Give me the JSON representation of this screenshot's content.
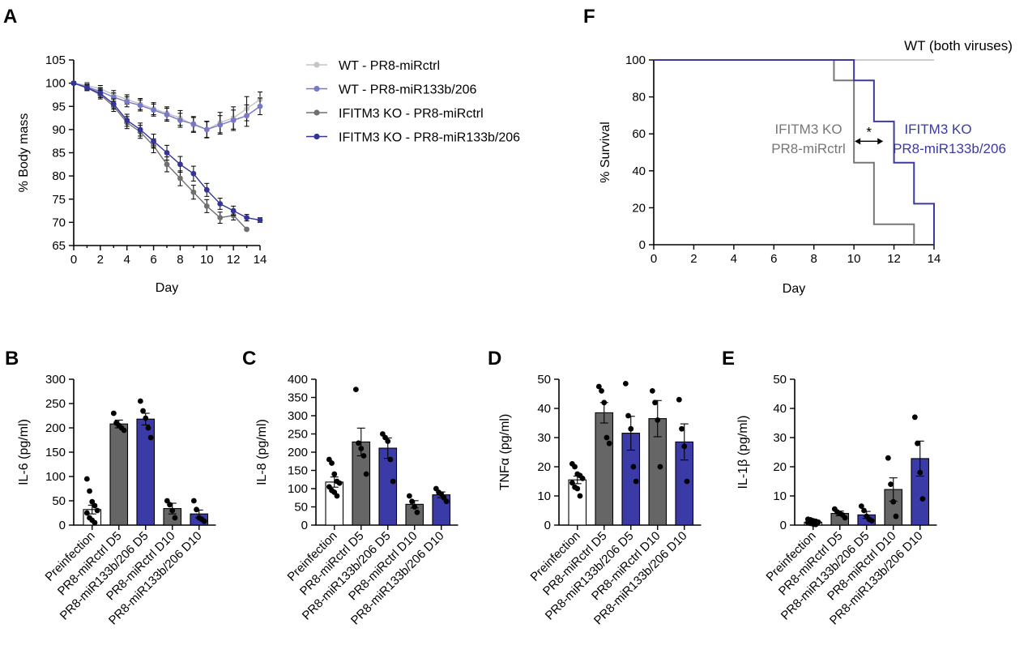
{
  "colors": {
    "wt_ctrl": "#c4c4c4",
    "wt_mir": "#7878c8",
    "ko_ctrl": "#707070",
    "ko_mir": "#33339a",
    "bar_ko_ctrl": "#666666",
    "bar_ko_mir": "#3b3ba8",
    "survival_wt": "#bdbdbd",
    "survival_ko_ctrl": "#777777",
    "survival_ko_mir": "#3a3aa0"
  },
  "chart_data": [
    {
      "id": "A",
      "panel_label": "A",
      "type": "line",
      "xlabel": "Day",
      "ylabel": "% Body mass",
      "xlim": [
        0,
        14
      ],
      "ylim": [
        65,
        105
      ],
      "xticks": [
        "0",
        "2",
        "4",
        "6",
        "8",
        "10",
        "12",
        "14"
      ],
      "yticks": [
        "65",
        "70",
        "75",
        "80",
        "85",
        "90",
        "95",
        "100",
        "105"
      ],
      "legend_position": "right",
      "series": [
        {
          "name": "WT - PR8-miRctrl",
          "color_key": "wt_ctrl",
          "x": [
            0,
            1,
            2,
            3,
            4,
            5,
            6,
            7,
            8,
            9,
            10,
            11,
            12,
            13,
            14
          ],
          "y": [
            100,
            99.5,
            98.8,
            97.5,
            96.5,
            95.5,
            94.5,
            93.5,
            92.5,
            91,
            90,
            91.5,
            92.5,
            94.5,
            96.5
          ],
          "err": [
            0.3,
            0.6,
            0.7,
            0.9,
            1.0,
            1.2,
            1.3,
            1.4,
            1.6,
            1.6,
            1.8,
            2.2,
            2.4,
            2.6,
            1.6
          ]
        },
        {
          "name": "WT - PR8-miR133b/206",
          "color_key": "wt_mir",
          "x": [
            0,
            1,
            2,
            3,
            4,
            5,
            6,
            7,
            8,
            9,
            10,
            11,
            12,
            13,
            14
          ],
          "y": [
            100,
            99.2,
            98.2,
            97,
            96,
            95.2,
            94.2,
            93.2,
            92,
            91.2,
            90,
            91,
            92,
            93,
            95
          ],
          "err": [
            0.3,
            0.6,
            0.8,
            0.9,
            1.1,
            1.2,
            1.3,
            1.4,
            1.5,
            1.6,
            1.7,
            2.0,
            2.2,
            2.3,
            1.8
          ]
        },
        {
          "name": "IFITM3 KO - PR8-miRctrl",
          "color_key": "ko_ctrl",
          "x": [
            0,
            1,
            2,
            3,
            4,
            5,
            6,
            7,
            8,
            9,
            10,
            11,
            12,
            13
          ],
          "y": [
            100,
            99,
            97.5,
            95,
            91.5,
            89.5,
            86.5,
            82.5,
            79.5,
            76.5,
            73.5,
            71,
            71.5,
            68.5
          ],
          "err": [
            0.3,
            0.6,
            0.9,
            1.1,
            1.3,
            1.4,
            1.5,
            1.6,
            1.6,
            1.5,
            1.4,
            1.2,
            1.0,
            0
          ]
        },
        {
          "name": "IFITM3 KO - PR8-miR133b/206",
          "color_key": "ko_mir",
          "x": [
            0,
            1,
            2,
            3,
            4,
            5,
            6,
            7,
            8,
            9,
            10,
            11,
            12,
            13,
            14
          ],
          "y": [
            100,
            99,
            97.8,
            95.5,
            92,
            90,
            87.5,
            85,
            82.5,
            80.5,
            77,
            74,
            72.5,
            71,
            70.5
          ],
          "err": [
            0.3,
            0.6,
            0.9,
            1.1,
            1.3,
            1.4,
            1.5,
            1.6,
            1.7,
            1.6,
            1.4,
            1.2,
            1.0,
            0.7,
            0.5
          ]
        }
      ]
    },
    {
      "id": "F",
      "panel_label": "F",
      "type": "line",
      "subtype": "step",
      "xlabel": "Day",
      "ylabel": "% Survival",
      "xlim": [
        0,
        14
      ],
      "ylim": [
        0,
        100
      ],
      "xticks": [
        "0",
        "2",
        "4",
        "6",
        "8",
        "10",
        "12",
        "14"
      ],
      "yticks": [
        "0",
        "20",
        "40",
        "60",
        "80",
        "100"
      ],
      "series": [
        {
          "name": "WT (both viruses)",
          "color_key": "survival_wt",
          "steps": [
            [
              0,
              100
            ],
            [
              14,
              100
            ]
          ]
        },
        {
          "name": "IFITM3 KO PR8-miRctrl",
          "color_key": "survival_ko_ctrl",
          "steps": [
            [
              0,
              100
            ],
            [
              9,
              88.9
            ],
            [
              10,
              44.4
            ],
            [
              11,
              11.1
            ],
            [
              13,
              0
            ]
          ]
        },
        {
          "name": "IFITM3 KO PR8-miR133b/206",
          "color_key": "survival_ko_mir",
          "steps": [
            [
              0,
              100
            ],
            [
              10,
              88.9
            ],
            [
              11,
              66.7
            ],
            [
              12,
              44.4
            ],
            [
              13,
              22.2
            ],
            [
              14,
              0
            ]
          ]
        }
      ],
      "annotations": {
        "wt": "WT (both viruses)",
        "ko_ctrl_line1": "IFITM3 KO",
        "ko_ctrl_line2": "PR8-miRctrl",
        "ko_mir_line1": "IFITM3 KO",
        "ko_mir_line2": "PR8-miR133b/206",
        "significance": "*"
      }
    },
    {
      "id": "B",
      "panel_label": "B",
      "type": "bar",
      "ylabel": "IL-6 (pg/ml)",
      "ylim": [
        0,
        300
      ],
      "yticks": [
        "0",
        "50",
        "100",
        "150",
        "200",
        "250",
        "300"
      ],
      "categories": [
        "Preinfection",
        "PR8-miRctrl D5",
        "PR8-miR133b/206 D5",
        "PR8-miRctrl D10",
        "PR8-miR133b/206 D10"
      ],
      "bar_colors": [
        "#ffffff",
        "bar_ko_ctrl",
        "bar_ko_mir",
        "bar_ko_ctrl",
        "bar_ko_mir"
      ],
      "values": [
        32,
        208,
        218,
        34,
        23
      ],
      "sem": [
        9,
        8,
        12,
        11,
        8
      ],
      "points": [
        [
          95,
          70,
          48,
          40,
          30,
          25,
          15,
          10,
          5
        ],
        [
          230,
          210,
          205,
          200,
          195
        ],
        [
          255,
          235,
          220,
          200,
          180
        ],
        [
          50,
          42,
          30,
          15
        ],
        [
          50,
          32,
          15,
          12,
          8
        ]
      ]
    },
    {
      "id": "C",
      "panel_label": "C",
      "type": "bar",
      "ylabel": "IL-8 (pg/ml)",
      "ylim": [
        0,
        400
      ],
      "yticks": [
        "0",
        "50",
        "100",
        "150",
        "200",
        "250",
        "300",
        "350",
        "400"
      ],
      "categories": [
        "Preinfection",
        "PR8-miRctrl D5",
        "PR8-miR133b/206 D5",
        "PR8-miRctrl D10",
        "PR8-miR133b/206 D10"
      ],
      "bar_colors": [
        "#ffffff",
        "bar_ko_ctrl",
        "bar_ko_mir",
        "bar_ko_ctrl",
        "bar_ko_mir"
      ],
      "values": [
        118,
        228,
        211,
        57,
        83
      ],
      "sem": [
        14,
        38,
        28,
        10,
        8
      ],
      "points": [
        [
          180,
          170,
          140,
          120,
          115,
          105,
          95,
          90,
          80
        ],
        [
          372,
          225,
          210,
          190,
          140
        ],
        [
          250,
          240,
          230,
          180,
          120
        ],
        [
          80,
          65,
          50,
          35
        ],
        [
          100,
          90,
          85,
          75,
          65
        ]
      ]
    },
    {
      "id": "D",
      "panel_label": "D",
      "type": "bar",
      "ylabel": "TNFα (pg/ml)",
      "ylim": [
        0,
        50
      ],
      "yticks": [
        "0",
        "10",
        "20",
        "30",
        "40",
        "50"
      ],
      "categories": [
        "Preinfection",
        "PR8-miRctrl D5",
        "PR8-miR133b/206 D5",
        "PR8-miRctrl D10",
        "PR8-miR133b/206 D10"
      ],
      "bar_colors": [
        "#ffffff",
        "bar_ko_ctrl",
        "bar_ko_mir",
        "bar_ko_ctrl",
        "bar_ko_mir"
      ],
      "values": [
        15.5,
        38.5,
        31.5,
        36.5,
        28.5
      ],
      "sem": [
        1.3,
        3.5,
        5.8,
        6.2,
        6.2
      ],
      "points": [
        [
          21,
          20,
          17.5,
          17,
          16,
          14.5,
          13,
          12.5,
          10
        ],
        [
          47.5,
          46,
          42,
          30,
          28
        ],
        [
          48.5,
          37.5,
          33,
          20,
          15
        ],
        [
          46,
          42,
          36,
          20
        ],
        [
          43,
          33,
          27,
          15
        ]
      ]
    },
    {
      "id": "E",
      "panel_label": "E",
      "type": "bar",
      "ylabel": "IL-1β (pg/ml)",
      "ylim": [
        0,
        50
      ],
      "yticks": [
        "0",
        "10",
        "20",
        "30",
        "40",
        "50"
      ],
      "categories": [
        "Preinfection",
        "PR8-miRctrl D5",
        "PR8-miR133b/206 D5",
        "PR8-miRctrl D10",
        "PR8-miR133b/206 D10"
      ],
      "bar_colors": [
        "#ffffff",
        "bar_ko_ctrl",
        "bar_ko_mir",
        "bar_ko_ctrl",
        "bar_ko_mir"
      ],
      "values": [
        1,
        4,
        3.5,
        12.2,
        22.8
      ],
      "sem": [
        0.3,
        0.8,
        1.2,
        4,
        6
      ],
      "points": [
        [
          2,
          1.8,
          1.5,
          1.3,
          1,
          0.8,
          0.6,
          0.4,
          0.2
        ],
        [
          5.5,
          4.5,
          4,
          3.5,
          2.5
        ],
        [
          6.5,
          5,
          3,
          2,
          1.5
        ],
        [
          23,
          14,
          8,
          3
        ],
        [
          37,
          28,
          18,
          9
        ]
      ]
    }
  ]
}
